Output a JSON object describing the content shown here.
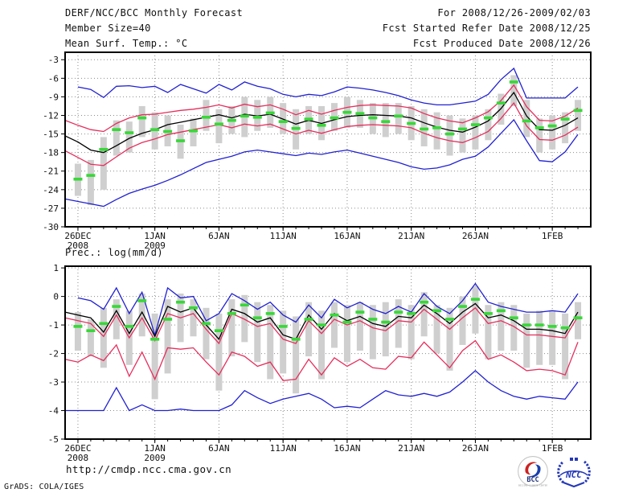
{
  "header": {
    "title": "DERF/NCC/BCC Monthly Forecast",
    "member_size": "Member Size=40",
    "for_period": "For 2008/12/26-2009/02/03",
    "refer_date": "Fcst Started Refer Date 2008/12/25",
    "produced_date": "Fcst Produced Date 2008/12/26"
  },
  "footer": {
    "url": "http://cmdp.ncc.cma.gov.cn",
    "credit": "GrADS: COLA/IGES",
    "logos": [
      {
        "name": "bcc-logo",
        "label": "BCC",
        "ring_text": "BEIJING CLIMATE CENTER"
      },
      {
        "name": "ncc-logo",
        "label": "NCC"
      }
    ]
  },
  "colors": {
    "blue": "#2121d2",
    "red": "#e62e5c",
    "green": "#38d838",
    "gray": "#cfcfcf",
    "frame": "#000000",
    "grid": "#8c8c8c",
    "text": "#111111",
    "logo_blue": "#2438b8",
    "logo_red": "#cc2222",
    "logo_navy": "#223377"
  },
  "chart_data": [
    {
      "id": "temp",
      "type": "line",
      "title": "Mean Surf. Temp.: °C",
      "xlabel": "",
      "ylabel": "",
      "grid": true,
      "legend": "none",
      "xlim": [
        -1,
        40
      ],
      "ylim": [
        -30,
        -1.8
      ],
      "yticks": [
        -3,
        -6,
        -9,
        -12,
        -15,
        -18,
        -21,
        -24,
        -27,
        -30
      ],
      "xticks": [
        {
          "day": 0,
          "label": "26DEC",
          "sub": "2008"
        },
        {
          "day": 6,
          "label": "1JAN",
          "sub": "2009"
        },
        {
          "day": 11,
          "label": "6JAN"
        },
        {
          "day": 16,
          "label": "11JAN"
        },
        {
          "day": 21,
          "label": "16JAN"
        },
        {
          "day": 26,
          "label": "21JAN"
        },
        {
          "day": 31,
          "label": "26JAN"
        },
        {
          "day": 37,
          "label": "1FEB"
        }
      ],
      "bars": {
        "name": "member-spread-bar",
        "color": "gray",
        "lo": [
          -25.0,
          -26.5,
          -24.0,
          -18.5,
          -18.0,
          -15.5,
          -17.5,
          -17.0,
          -19.0,
          -17.0,
          -14.5,
          -16.5,
          -15.0,
          -15.5,
          -14.5,
          -14.0,
          -15.0,
          -17.5,
          -15.0,
          -16.0,
          -14.5,
          -14.0,
          -14.0,
          -15.0,
          -15.5,
          -15.0,
          -16.0,
          -17.0,
          -17.5,
          -18.5,
          -18.0,
          -17.5,
          -16.0,
          -13.5,
          -10.5,
          -15.5,
          -18.0,
          -17.5,
          -16.5,
          -14.5
        ],
        "hi": [
          -19.8,
          -19.2,
          -15.5,
          -12.8,
          -13.0,
          -10.5,
          -11.5,
          -12.0,
          -13.5,
          -12.5,
          -9.5,
          -11.0,
          -10.5,
          -9.0,
          -9.5,
          -9.0,
          -10.0,
          -11.0,
          -10.5,
          -10.5,
          -10.0,
          -9.0,
          -9.5,
          -10.0,
          -10.0,
          -10.0,
          -10.5,
          -11.0,
          -11.5,
          -12.0,
          -12.5,
          -12.0,
          -11.0,
          -8.5,
          -5.5,
          -9.5,
          -12.5,
          -12.0,
          -11.5,
          -9.5
        ]
      },
      "series": [
        {
          "name": "ensemble-max-line",
          "color": "blue",
          "start": -1,
          "values": [
            null,
            -7.4,
            -7.8,
            -9.1,
            -7.3,
            -7.2,
            -7.5,
            -7.3,
            -8.3,
            -7.0,
            -7.7,
            -8.4,
            -7.0,
            -7.9,
            -6.6,
            -7.3,
            -7.7,
            -8.6,
            -9.0,
            -8.6,
            -8.8,
            -8.2,
            -7.4,
            -7.6,
            -7.9,
            -8.3,
            -8.8,
            -9.5,
            -10.0,
            -10.3,
            -10.3,
            -10.0,
            -9.7,
            -8.6,
            -6.2,
            -4.4,
            -9.2,
            -9.2,
            -9.2,
            -9.2,
            -7.4
          ]
        },
        {
          "name": "ensemble-min-line",
          "color": "blue",
          "start": -1,
          "values": [
            -25.5,
            -25.9,
            -26.3,
            -26.7,
            -25.6,
            -24.6,
            -23.9,
            -23.3,
            -22.5,
            -21.6,
            -20.6,
            -19.6,
            -19.1,
            -18.6,
            -17.9,
            -17.6,
            -17.9,
            -18.2,
            -18.5,
            -18.1,
            -18.3,
            -17.9,
            -17.6,
            -18.1,
            -18.6,
            -19.1,
            -19.6,
            -20.3,
            -20.7,
            -20.5,
            -20.0,
            -19.1,
            -18.6,
            -17.1,
            -14.9,
            -12.7,
            -16.1,
            -19.3,
            -19.5,
            -17.9,
            -15.1
          ]
        },
        {
          "name": "upper-spread-line",
          "color": "red",
          "start": -1,
          "values": [
            -12.8,
            -13.6,
            -14.3,
            -14.6,
            -13.3,
            -12.4,
            -11.9,
            -11.8,
            -11.5,
            -11.2,
            -11.0,
            -10.7,
            -10.3,
            -10.8,
            -10.2,
            -10.6,
            -10.3,
            -11.0,
            -11.9,
            -11.2,
            -11.8,
            -11.2,
            -10.7,
            -10.4,
            -10.3,
            -10.4,
            -10.5,
            -10.8,
            -11.7,
            -12.4,
            -12.9,
            -13.2,
            -12.4,
            -11.4,
            -9.6,
            -7.1,
            -10.6,
            -12.8,
            -12.9,
            -12.1,
            -10.8
          ]
        },
        {
          "name": "lower-spread-line",
          "color": "red",
          "start": -1,
          "values": [
            -17.7,
            -18.8,
            -19.9,
            -20.1,
            -18.7,
            -17.3,
            -16.4,
            -15.8,
            -15.1,
            -14.7,
            -14.3,
            -13.9,
            -13.5,
            -14.0,
            -13.4,
            -13.7,
            -13.4,
            -14.2,
            -15.0,
            -14.4,
            -14.9,
            -14.3,
            -13.8,
            -13.6,
            -13.5,
            -13.6,
            -13.7,
            -14.0,
            -14.9,
            -15.6,
            -16.1,
            -16.4,
            -15.6,
            -14.6,
            -12.5,
            -10.0,
            -13.7,
            -15.9,
            -16.0,
            -15.2,
            -13.9
          ]
        },
        {
          "name": "ensemble-mean-line",
          "color": "black",
          "start": -1,
          "values": [
            -15.3,
            -16.3,
            -17.6,
            -18.0,
            -16.9,
            -15.7,
            -14.9,
            -14.3,
            -13.5,
            -13.1,
            -12.7,
            -12.3,
            -11.9,
            -12.4,
            -11.8,
            -12.1,
            -11.8,
            -12.6,
            -13.4,
            -12.8,
            -13.3,
            -12.7,
            -12.2,
            -12.0,
            -11.9,
            -12.0,
            -12.1,
            -12.4,
            -13.2,
            -13.9,
            -14.4,
            -14.7,
            -13.9,
            -12.9,
            -10.9,
            -8.3,
            -12.1,
            -14.3,
            -14.4,
            -13.6,
            -12.4
          ]
        }
      ],
      "markers": {
        "name": "median-dash-marker",
        "color": "green",
        "values": [
          -22.3,
          -21.7,
          -17.5,
          -14.3,
          -14.8,
          -12.4,
          -14.3,
          -14.6,
          -16.1,
          -14.5,
          -12.3,
          -13.4,
          -12.8,
          -12.1,
          -12.3,
          -11.6,
          -13.0,
          -14.1,
          -12.6,
          -13.6,
          -12.4,
          -11.5,
          -11.7,
          -12.4,
          -13.0,
          -12.1,
          -13.3,
          -14.2,
          -14.0,
          -15.0,
          -14.2,
          -13.5,
          -12.4,
          -10.0,
          -6.6,
          -12.9,
          -14.0,
          -13.7,
          -12.6,
          -11.2
        ]
      }
    },
    {
      "id": "prec",
      "type": "line",
      "title": "Prec.: log(mm/d)",
      "xlabel": "",
      "ylabel": "",
      "grid": true,
      "legend": "none",
      "xlim": [
        -1,
        40
      ],
      "ylim": [
        -5,
        1.06
      ],
      "yticks": [
        1,
        0,
        -1,
        -2,
        -3,
        -4,
        -5
      ],
      "xticks": [
        {
          "day": 0,
          "label": "26DEC",
          "sub": "2008"
        },
        {
          "day": 6,
          "label": "1JAN",
          "sub": "2009"
        },
        {
          "day": 11,
          "label": "6JAN"
        },
        {
          "day": 16,
          "label": "11JAN"
        },
        {
          "day": 21,
          "label": "16JAN"
        },
        {
          "day": 26,
          "label": "21JAN"
        },
        {
          "day": 31,
          "label": "26JAN"
        },
        {
          "day": 37,
          "label": "1FEB"
        }
      ],
      "bars": {
        "name": "member-spread-bar",
        "color": "gray",
        "lo": [
          -1.9,
          -2.1,
          -2.5,
          -1.5,
          -2.4,
          -1.4,
          -3.6,
          -2.7,
          -1.6,
          -1.4,
          -2.2,
          -3.3,
          -2.1,
          -1.6,
          -2.3,
          -2.9,
          -2.7,
          -3.4,
          -2.1,
          -2.9,
          -1.8,
          -2.3,
          -1.9,
          -2.2,
          -2.1,
          -1.8,
          -2.2,
          -1.4,
          -2.0,
          -2.6,
          -1.7,
          -1.3,
          -2.2,
          -1.9,
          -1.9,
          -2.5,
          -2.4,
          -2.4,
          -2.9,
          -1.5
        ],
        "hi": [
          -0.55,
          -0.8,
          -0.4,
          -0.1,
          -0.5,
          0.1,
          -0.6,
          -0.1,
          0.1,
          -0.1,
          -0.4,
          -0.6,
          -0.1,
          0.05,
          -0.2,
          -0.3,
          -0.5,
          -0.7,
          -0.2,
          -0.5,
          -0.2,
          -0.3,
          -0.2,
          -0.3,
          -0.2,
          -0.1,
          -0.3,
          0.15,
          -0.3,
          -0.4,
          0.0,
          0.35,
          -0.3,
          -0.2,
          -0.3,
          -0.6,
          -0.5,
          -0.5,
          -0.6,
          -0.2
        ]
      },
      "series": [
        {
          "name": "ensemble-max-line",
          "color": "blue",
          "start": -1,
          "values": [
            null,
            -0.05,
            -0.15,
            -0.45,
            0.3,
            -0.6,
            0.15,
            -1.35,
            0.3,
            -0.05,
            0.0,
            -0.85,
            -0.6,
            0.1,
            -0.15,
            -0.45,
            -0.2,
            -0.65,
            -0.9,
            -0.3,
            -0.75,
            -0.1,
            -0.4,
            -0.2,
            -0.45,
            -0.6,
            -0.35,
            -0.55,
            0.1,
            -0.35,
            -0.6,
            -0.15,
            0.45,
            -0.2,
            -0.35,
            -0.45,
            -0.55,
            -0.55,
            -0.5,
            -0.55,
            0.1
          ]
        },
        {
          "name": "ensemble-min-line",
          "color": "blue",
          "start": -1,
          "values": [
            -4.0,
            -4.0,
            -4.0,
            -4.0,
            -3.2,
            -4.0,
            -3.8,
            -4.0,
            -4.0,
            -3.95,
            -4.0,
            -4.0,
            -4.0,
            -3.8,
            -3.3,
            -3.55,
            -3.75,
            -3.6,
            -3.5,
            -3.4,
            -3.6,
            -3.9,
            -3.85,
            -3.9,
            -3.6,
            -3.3,
            -3.45,
            -3.5,
            -3.4,
            -3.5,
            -3.35,
            -3.0,
            -2.6,
            -3.0,
            -3.3,
            -3.5,
            -3.6,
            -3.5,
            -3.55,
            -3.6,
            -3.0
          ]
        },
        {
          "name": "upper-spread-line",
          "color": "red",
          "start": -1,
          "values": [
            -0.75,
            -0.85,
            -0.95,
            -1.4,
            -0.65,
            -1.45,
            -0.75,
            -1.55,
            -0.6,
            -0.75,
            -0.6,
            -1.15,
            -1.65,
            -0.6,
            -0.8,
            -1.05,
            -0.95,
            -1.5,
            -1.65,
            -0.85,
            -1.3,
            -0.8,
            -1.0,
            -0.85,
            -1.1,
            -1.2,
            -0.85,
            -0.9,
            -0.45,
            -0.8,
            -1.15,
            -0.75,
            -0.4,
            -0.95,
            -0.85,
            -1.05,
            -1.35,
            -1.35,
            -1.4,
            -1.45,
            -0.7
          ]
        },
        {
          "name": "lower-spread-line",
          "color": "red",
          "start": -1,
          "values": [
            -2.2,
            -2.3,
            -2.05,
            -2.25,
            -1.7,
            -2.8,
            -1.95,
            -2.9,
            -1.8,
            -1.85,
            -1.8,
            -2.3,
            -2.75,
            -1.95,
            -2.1,
            -2.45,
            -2.3,
            -2.95,
            -2.9,
            -2.2,
            -2.75,
            -2.15,
            -2.45,
            -2.2,
            -2.5,
            -2.55,
            -2.1,
            -2.15,
            -1.6,
            -2.05,
            -2.5,
            -1.9,
            -1.55,
            -2.2,
            -2.05,
            -2.3,
            -2.6,
            -2.55,
            -2.6,
            -2.75,
            -1.6
          ]
        },
        {
          "name": "ensemble-mean-line",
          "color": "black",
          "start": -1,
          "values": [
            -0.55,
            -0.65,
            -0.75,
            -1.25,
            -0.5,
            -1.3,
            -0.55,
            -1.4,
            -0.35,
            -0.55,
            -0.4,
            -1.0,
            -1.5,
            -0.45,
            -0.6,
            -0.9,
            -0.75,
            -1.35,
            -1.5,
            -0.65,
            -1.15,
            -0.6,
            -0.85,
            -0.7,
            -0.95,
            -1.05,
            -0.7,
            -0.75,
            -0.3,
            -0.6,
            -0.95,
            -0.55,
            -0.25,
            -0.75,
            -0.65,
            -0.85,
            -1.15,
            -1.15,
            -1.2,
            -1.3,
            -0.55
          ]
        }
      ],
      "markers": {
        "name": "median-dash-marker",
        "color": "green",
        "values": [
          -1.05,
          -1.2,
          -0.95,
          -0.35,
          -1.05,
          -0.15,
          -1.5,
          -0.8,
          -0.2,
          -0.4,
          -0.95,
          -1.2,
          -0.6,
          -0.3,
          -0.75,
          -0.6,
          -1.05,
          -1.5,
          -0.8,
          -1.0,
          -0.65,
          -0.9,
          -0.55,
          -0.8,
          -0.9,
          -0.55,
          -0.6,
          -0.2,
          -0.5,
          -0.8,
          -0.35,
          -0.1,
          -0.6,
          -0.5,
          -0.75,
          -1.0,
          -1.0,
          -1.05,
          -1.1,
          -0.75
        ]
      }
    }
  ]
}
